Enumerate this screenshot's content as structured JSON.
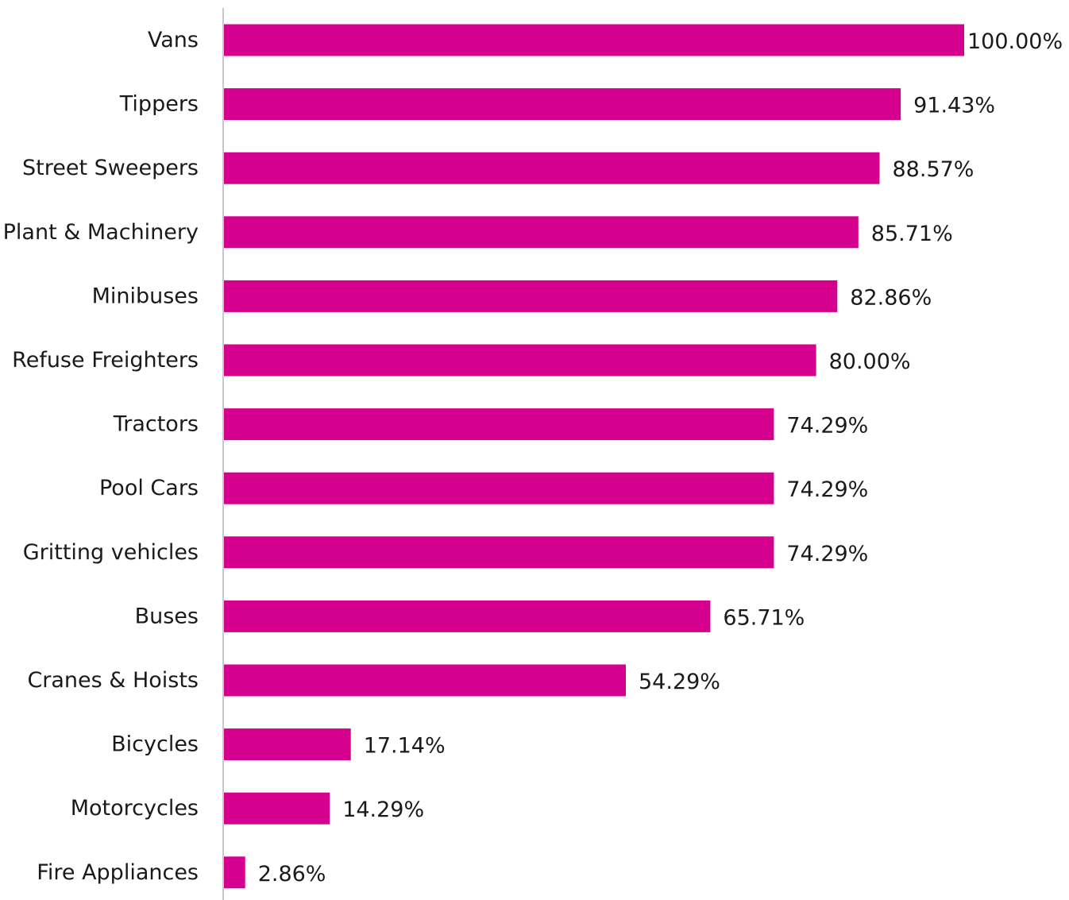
{
  "chart_data": {
    "type": "bar",
    "orientation": "horizontal",
    "categories": [
      "Vans",
      "Tippers",
      "Street Sweepers",
      "Plant & Machinery",
      "Minibuses",
      "Refuse Freighters",
      "Tractors",
      "Pool Cars",
      "Gritting vehicles",
      "Buses",
      "Cranes & Hoists",
      "Bicycles",
      "Motorcycles",
      "Fire Appliances"
    ],
    "values": [
      100.0,
      91.43,
      88.57,
      85.71,
      82.86,
      80.0,
      74.29,
      74.29,
      74.29,
      65.71,
      54.29,
      17.14,
      14.29,
      2.86
    ],
    "value_labels": [
      "100.00%",
      "91.43%",
      "88.57%",
      "85.71%",
      "82.86%",
      "80.00%",
      "74.29%",
      "74.29%",
      "74.29%",
      "65.71%",
      "54.29%",
      "17.14%",
      "14.29%",
      "2.86%"
    ],
    "title": "",
    "xlabel": "",
    "ylabel": "",
    "xlim": [
      0,
      100
    ],
    "grid": false,
    "legend": "none",
    "bar_color": "#d6008f",
    "axis_color": "#c8c8c8"
  }
}
